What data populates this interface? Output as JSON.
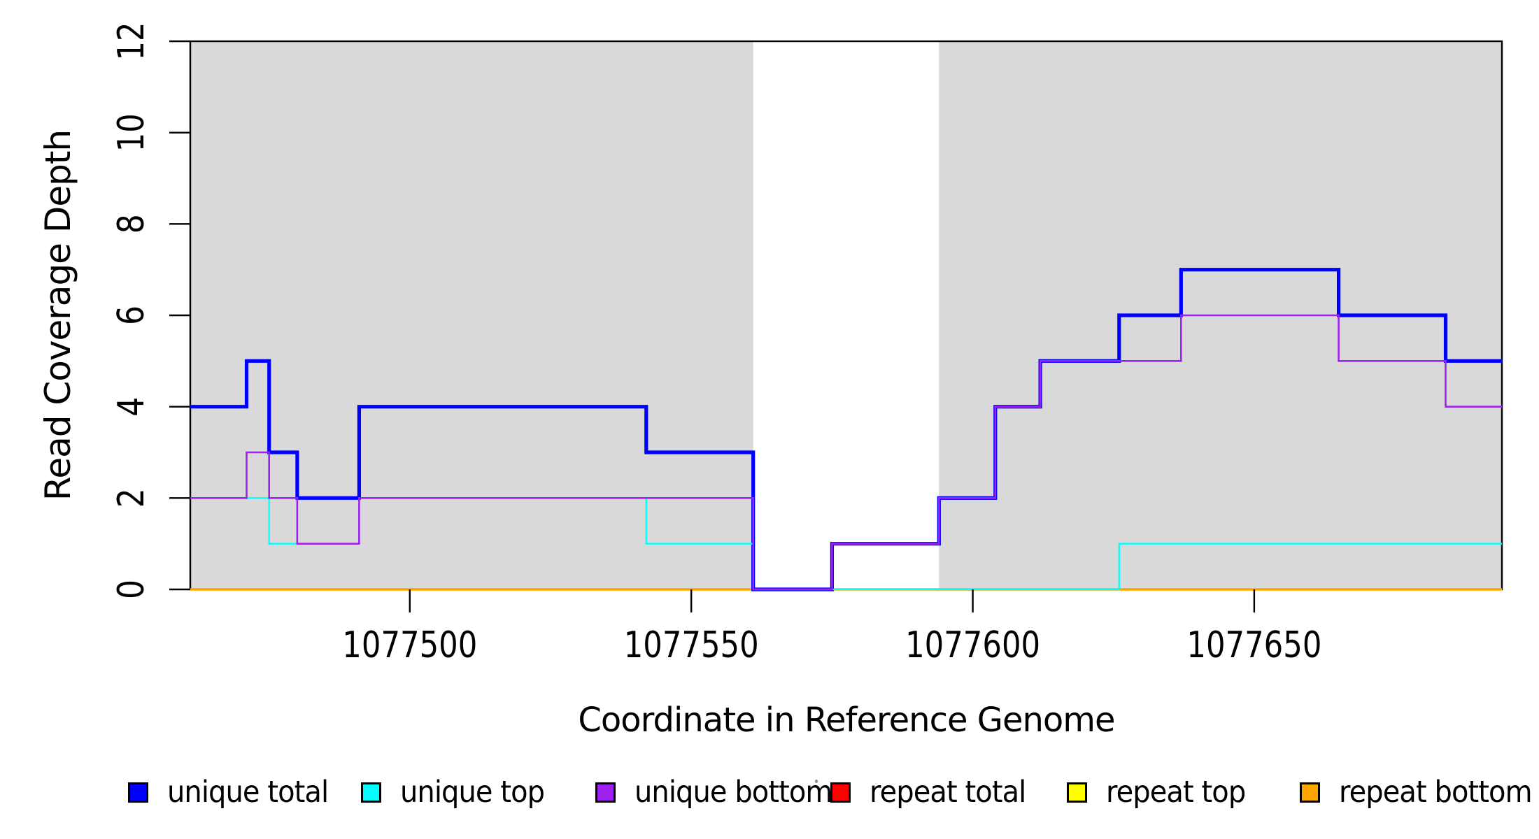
{
  "chart_data": {
    "type": "line",
    "subtype": "step",
    "title": "",
    "xlabel": "Coordinate in Reference Genome",
    "ylabel": "Read Coverage Depth",
    "xlim": [
      1077461,
      1077694
    ],
    "ylim": [
      0,
      12
    ],
    "xticks": [
      1077500,
      1077550,
      1077600,
      1077650
    ],
    "yticks": [
      0,
      2,
      4,
      6,
      8,
      10,
      12
    ],
    "grid": false,
    "shade_color": "#d9d9d9",
    "shaded_regions": [
      {
        "from": 1077461,
        "to": 1077561
      },
      {
        "from": 1077594,
        "to": 1077694
      }
    ],
    "series": [
      {
        "name": "unique total",
        "color": "#0000ff",
        "line_width": 5.2,
        "steps": [
          [
            1077461,
            4
          ],
          [
            1077471,
            5
          ],
          [
            1077475,
            3
          ],
          [
            1077480,
            2
          ],
          [
            1077491,
            4
          ],
          [
            1077542,
            3
          ],
          [
            1077561,
            0
          ],
          [
            1077575,
            1
          ],
          [
            1077594,
            2
          ],
          [
            1077604,
            4
          ],
          [
            1077612,
            5
          ],
          [
            1077626,
            6
          ],
          [
            1077637,
            7
          ],
          [
            1077665,
            6
          ],
          [
            1077684,
            5
          ]
        ]
      },
      {
        "name": "unique top",
        "color": "#00ffff",
        "line_width": 2.3,
        "steps": [
          [
            1077461,
            2
          ],
          [
            1077475,
            1
          ],
          [
            1077491,
            2
          ],
          [
            1077542,
            1
          ],
          [
            1077561,
            0
          ],
          [
            1077626,
            1
          ]
        ]
      },
      {
        "name": "unique bottom",
        "color": "#a020f0",
        "line_width": 2.6,
        "steps": [
          [
            1077461,
            2
          ],
          [
            1077471,
            3
          ],
          [
            1077475,
            2
          ],
          [
            1077480,
            1
          ],
          [
            1077491,
            2
          ],
          [
            1077561,
            0
          ],
          [
            1077575,
            1
          ],
          [
            1077594,
            2
          ],
          [
            1077604,
            4
          ],
          [
            1077612,
            5
          ],
          [
            1077637,
            6
          ],
          [
            1077665,
            5
          ],
          [
            1077684,
            4
          ]
        ]
      },
      {
        "name": "repeat total",
        "color": "#ff0000",
        "line_width": 3,
        "steps": [
          [
            1077461,
            0
          ]
        ]
      },
      {
        "name": "repeat top",
        "color": "#ffff00",
        "line_width": 3,
        "steps": [
          [
            1077461,
            0
          ]
        ]
      },
      {
        "name": "repeat bottom",
        "color": "#ffa500",
        "line_width": 3.6,
        "steps": [
          [
            1077461,
            0
          ]
        ]
      }
    ],
    "draw_order": [
      "repeat total",
      "repeat top",
      "repeat bottom",
      "unique total",
      "unique top",
      "unique bottom"
    ],
    "legend": {
      "position": "bottom",
      "entries": [
        {
          "label": "unique total",
          "color": "#0000ff"
        },
        {
          "label": "unique top",
          "color": "#00ffff"
        },
        {
          "label": "unique bottom",
          "color": "#a020f0"
        },
        {
          "label": "repeat total",
          "color": "#ff0000"
        },
        {
          "label": "repeat top",
          "color": "#ffff00"
        },
        {
          "label": "repeat bottom",
          "color": "#ffa500"
        }
      ]
    }
  }
}
